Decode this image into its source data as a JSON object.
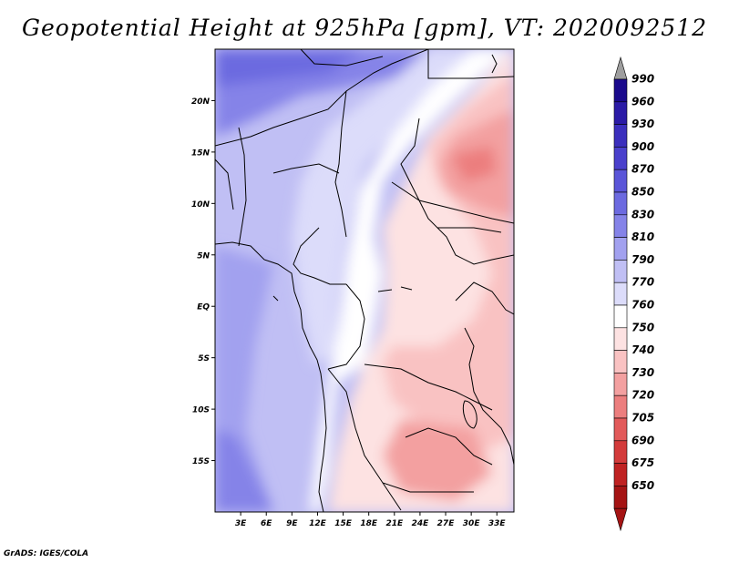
{
  "title": "Geopotential Height at 925hPa [gpm], VT: 2020092512",
  "credit": "GrADS: IGES/COLA",
  "map": {
    "lat_labels": [
      "20N",
      "15N",
      "10N",
      "5N",
      "EQ",
      "5S",
      "10S",
      "15S"
    ],
    "lat_values": [
      20,
      15,
      10,
      5,
      0,
      -5,
      -10,
      -15
    ],
    "lon_labels": [
      "3E",
      "6E",
      "9E",
      "12E",
      "15E",
      "18E",
      "21E",
      "24E",
      "27E",
      "30E",
      "33E"
    ],
    "lon_values": [
      3,
      6,
      9,
      12,
      15,
      18,
      21,
      24,
      27,
      30,
      33
    ],
    "lon_range": [
      0,
      35
    ],
    "lat_range": [
      -20,
      25
    ]
  },
  "colorbar": {
    "labels": [
      "990",
      "960",
      "930",
      "900",
      "870",
      "850",
      "830",
      "810",
      "790",
      "770",
      "760",
      "750",
      "740",
      "730",
      "720",
      "705",
      "690",
      "675",
      "650"
    ],
    "colors": [
      "#1a0a8c",
      "#2b1ba6",
      "#3b2fbd",
      "#4a40cc",
      "#5a55d8",
      "#6c6ae0",
      "#8583e8",
      "#a2a1ef",
      "#c0bff4",
      "#dcdcfa",
      "#ffffff",
      "#fde2e2",
      "#f9c2c2",
      "#f3a0a0",
      "#ec7e7e",
      "#e25a5a",
      "#d33b3b",
      "#bf2222",
      "#a51414"
    ],
    "top_arrow_color": "#9e9e9e",
    "bottom_arrow_color": "#a51414"
  }
}
